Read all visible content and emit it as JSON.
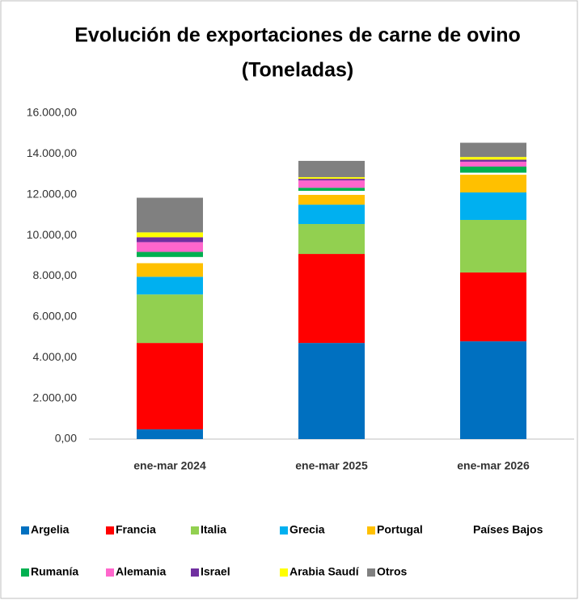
{
  "chart_data": {
    "type": "stacked_bar",
    "title": "Evolución de exportaciones de carne de ovino",
    "subtitle": "(Toneladas)",
    "categories": [
      "ene-mar 2024",
      "ene-mar 2025",
      "ene-mar 2026"
    ],
    "series": [
      {
        "name": "Argelia",
        "color": "#0070c0",
        "values": [
          480,
          4720,
          4800
        ]
      },
      {
        "name": "Francia",
        "color": "#ff0000",
        "values": [
          4240,
          4370,
          3380
        ]
      },
      {
        "name": "Italia",
        "color": "#92d050",
        "values": [
          2380,
          1470,
          2580
        ]
      },
      {
        "name": "Grecia",
        "color": "#00b0f0",
        "values": [
          870,
          950,
          1350
        ]
      },
      {
        "name": "Portugal",
        "color": "#ffc000",
        "values": [
          670,
          480,
          870
        ]
      },
      {
        "name": "Países Bajos",
        "color": "#ffffff",
        "values": [
          300,
          200,
          100
        ]
      },
      {
        "name": "Rumanía",
        "color": "#00b050",
        "values": [
          250,
          150,
          300
        ]
      },
      {
        "name": "Alemania",
        "color": "#ff66cc",
        "values": [
          480,
          360,
          240
        ]
      },
      {
        "name": "Israel",
        "color": "#7030a0",
        "values": [
          240,
          80,
          100
        ]
      },
      {
        "name": "Arabia Saudí",
        "color": "#ffff00",
        "values": [
          240,
          80,
          130
        ]
      },
      {
        "name": "Otros",
        "color": "#808080",
        "values": [
          1700,
          800,
          700
        ]
      }
    ],
    "ylim": [
      0,
      16000
    ],
    "yticks": [
      {
        "value": 0,
        "label": "0,00"
      },
      {
        "value": 2000,
        "label": "2.000,00"
      },
      {
        "value": 4000,
        "label": "4.000,00"
      },
      {
        "value": 6000,
        "label": "6.000,00"
      },
      {
        "value": 8000,
        "label": "8.000,00"
      },
      {
        "value": 10000,
        "label": "10.000,00"
      },
      {
        "value": 12000,
        "label": "12.000,00"
      },
      {
        "value": 14000,
        "label": "14.000,00"
      },
      {
        "value": 16000,
        "label": "16.000,00"
      }
    ],
    "grid": false,
    "legend": "bottom"
  }
}
